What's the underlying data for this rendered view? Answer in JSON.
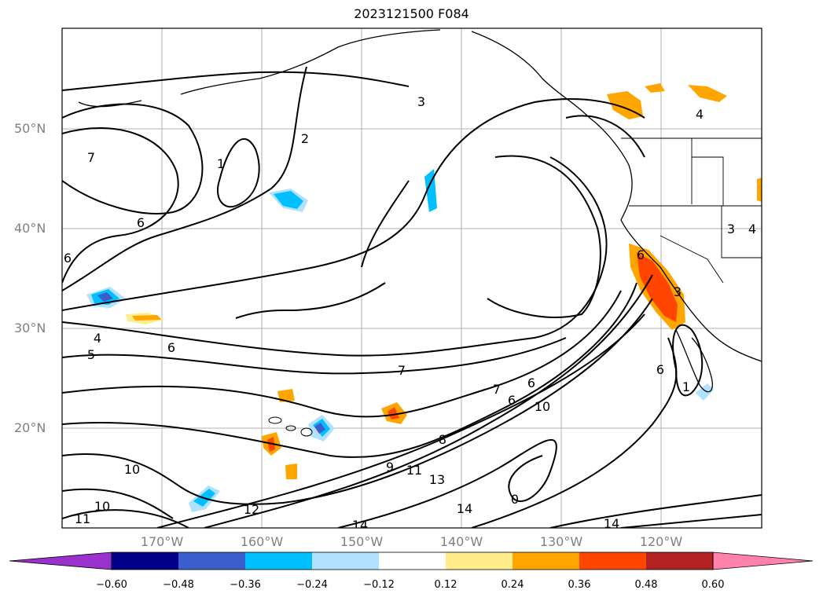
{
  "title": "2023121500 F084",
  "map": {
    "lat_labels": [
      "50°N",
      "40°N",
      "30°N",
      "20°N"
    ],
    "lon_labels": [
      "170°W",
      "160°W",
      "150°W",
      "140°W",
      "130°W",
      "120°W"
    ],
    "contour_labels": [
      "3",
      "2",
      "1",
      "7",
      "6",
      "6",
      "5",
      "4",
      "6",
      "7",
      "7",
      "6",
      "6",
      "8",
      "10",
      "9",
      "11",
      "13",
      "12",
      "10",
      "11",
      "10",
      "14",
      "14",
      "14",
      "6",
      "3",
      "4",
      "4",
      "6",
      "1",
      "3",
      "0"
    ]
  },
  "colorbar": {
    "ticks": [
      "−0.60",
      "−0.48",
      "−0.36",
      "−0.24",
      "−0.12",
      "0.12",
      "0.24",
      "0.36",
      "0.48",
      "0.60"
    ],
    "colors": [
      "#9932cc",
      "#00008b",
      "#3a5fcd",
      "#00bfff",
      "#b0e2ff",
      "#ffffff",
      "#ffec8b",
      "#ffa500",
      "#ff4500",
      "#b22222",
      "#ff82ab"
    ]
  }
}
